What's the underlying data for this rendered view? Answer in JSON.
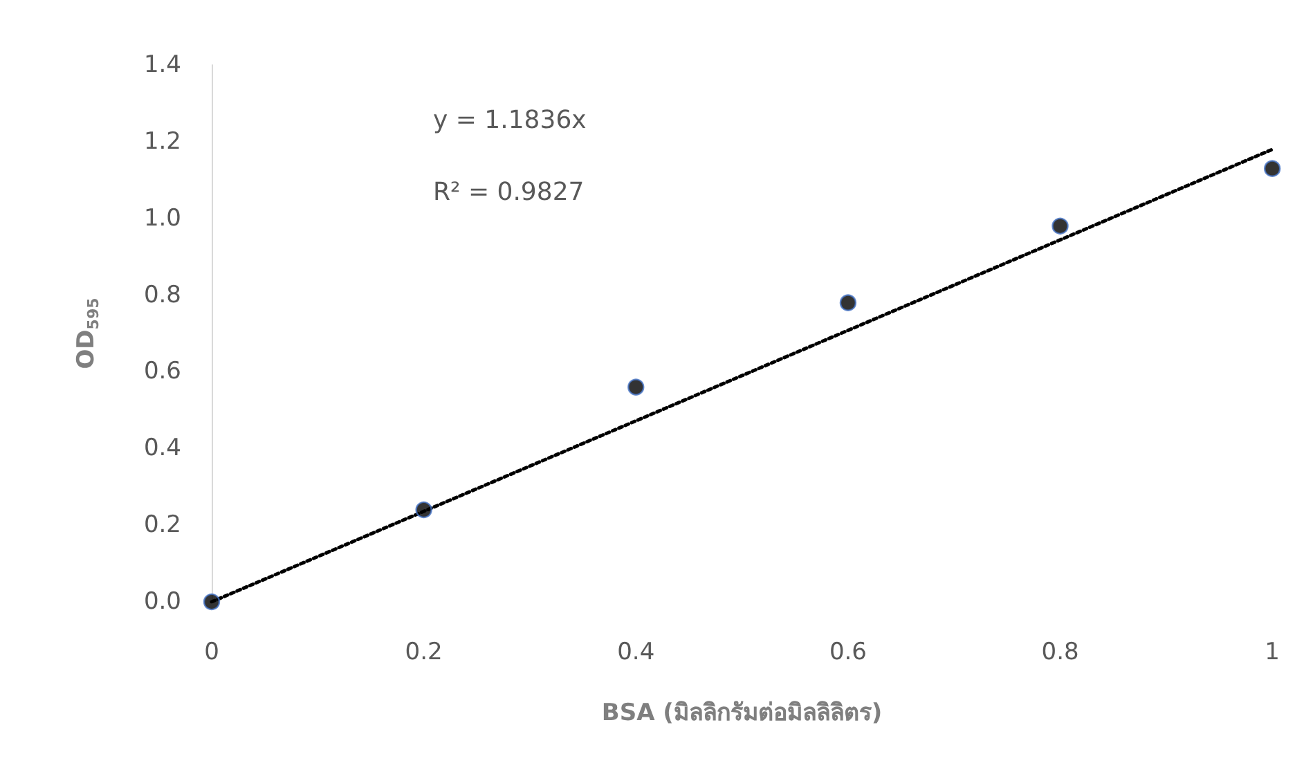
{
  "chart_data": {
    "type": "scatter",
    "xlabel": "BSA (มิลลิกรัมต่อมิลลิลิตร)",
    "ylabel": "OD$_{595}$",
    "x": [
      0,
      0.2,
      0.4,
      0.6,
      0.8,
      1
    ],
    "series": [
      {
        "color": "#000000",
        "values": [
          0,
          0.24,
          0.56,
          0.78,
          0.98,
          1.13
        ]
      },
      {
        "type": "line",
        "color": "#000000",
        "line_style": "dotted",
        "marker": "none",
        "x": [
          0,
          1
        ],
        "values": [
          0,
          1.18
        ]
      }
    ],
    "annotations": [
      "y = 1.1836x",
      "R² = 0.9827"
    ],
    "marker": "circle",
    "xlim": [
      0,
      1
    ],
    "xticks": [
      0,
      0.2,
      0.4,
      0.6,
      0.8,
      1
    ],
    "ylim": [
      0,
      1.4
    ],
    "yticks": [
      {
        "value": 0,
        "label": "0.0"
      },
      {
        "value": 0.2,
        "label": "0.2"
      },
      {
        "value": 0.4,
        "label": "0.4"
      },
      {
        "value": 0.6,
        "label": "0.6"
      },
      {
        "value": 0.8,
        "label": "0.8"
      },
      {
        "value": 1,
        "label": "1.0"
      },
      {
        "value": 1.2,
        "label": "1.2"
      },
      {
        "value": 1.4,
        "label": "1.4"
      }
    ],
    "grid": false
  }
}
